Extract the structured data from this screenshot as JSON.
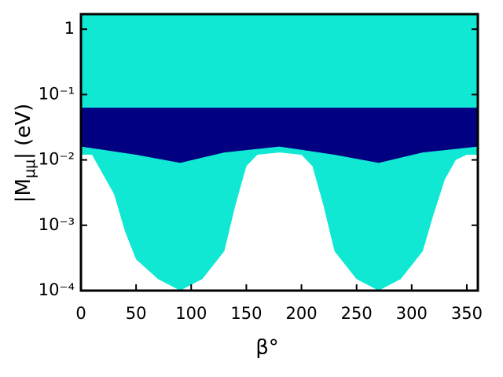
{
  "chart_data": {
    "type": "band",
    "xlabel": "β°",
    "ylabel": {
      "main": "|M",
      "sub": "μμ",
      "end": "| (eV)"
    },
    "xlim": [
      0,
      360
    ],
    "xticks": [
      0,
      50,
      100,
      150,
      200,
      250,
      300,
      350
    ],
    "ylim": [
      0.0001,
      1.7
    ],
    "log_y": true,
    "yticks": [
      {
        "value": 0.0001,
        "label": "10⁻⁴"
      },
      {
        "value": 0.001,
        "label": "10⁻³"
      },
      {
        "value": 0.01,
        "label": "10⁻²"
      },
      {
        "value": 0.1,
        "label": "10⁻¹"
      },
      1
    ],
    "series": [
      {
        "color": "#10e8d4",
        "x": [
          0,
          10,
          20,
          30,
          40,
          50,
          70,
          90,
          110,
          130,
          140,
          150,
          160,
          180,
          200,
          210,
          220,
          230,
          250,
          270,
          290,
          310,
          320,
          330,
          340,
          350,
          360
        ],
        "upper": [
          1.7,
          1.7,
          1.7,
          1.7,
          1.7,
          1.7,
          1.7,
          1.7,
          1.7,
          1.7,
          1.7,
          1.7,
          1.7,
          1.7,
          1.7,
          1.7,
          1.7,
          1.7,
          1.7,
          1.7,
          1.7,
          1.7,
          1.7,
          1.7,
          1.7,
          1.7,
          1.7
        ],
        "lower": [
          0.012,
          0.012,
          0.006,
          0.003,
          0.0008,
          0.0003,
          0.00015,
          0.0001,
          0.00015,
          0.0004,
          0.002,
          0.008,
          0.012,
          0.013,
          0.012,
          0.008,
          0.002,
          0.0004,
          0.00015,
          0.0001,
          0.00015,
          0.0004,
          0.0015,
          0.005,
          0.01,
          0.012,
          0.012
        ]
      },
      {
        "color": "#000080",
        "x": [
          0,
          50,
          90,
          130,
          180,
          230,
          270,
          310,
          360
        ],
        "upper": [
          0.063,
          0.063,
          0.063,
          0.063,
          0.063,
          0.063,
          0.063,
          0.063,
          0.063
        ],
        "lower": [
          0.016,
          0.012,
          0.009,
          0.013,
          0.016,
          0.012,
          0.009,
          0.013,
          0.016
        ]
      }
    ]
  }
}
